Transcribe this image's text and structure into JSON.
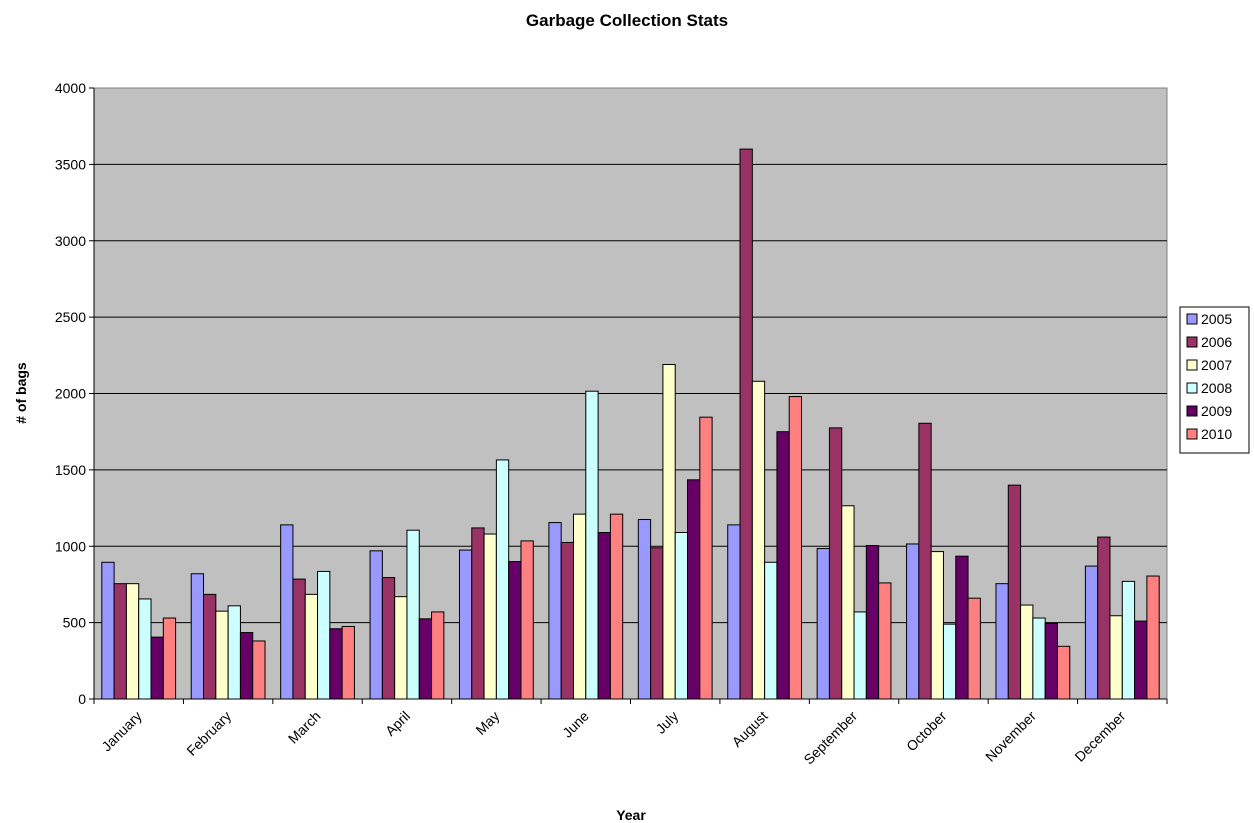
{
  "chart_data": {
    "type": "bar",
    "title": "Garbage Collection Stats",
    "xlabel": "Year",
    "ylabel": "# of bags",
    "ylim": [
      0,
      4000
    ],
    "yticks": [
      0,
      500,
      1000,
      1500,
      2000,
      2500,
      3000,
      3500,
      4000
    ],
    "grid": true,
    "legend_position": "right",
    "plot_background": "#c0c0c0",
    "categories": [
      "January",
      "February",
      "March",
      "April",
      "May",
      "June",
      "July",
      "August",
      "September",
      "October",
      "November",
      "December"
    ],
    "series": [
      {
        "name": "2005",
        "color": "#9999ff",
        "values": [
          895,
          820,
          1140,
          970,
          975,
          1155,
          1175,
          1140,
          985,
          1015,
          755,
          870
        ]
      },
      {
        "name": "2006",
        "color": "#993366",
        "values": [
          755,
          685,
          785,
          795,
          1120,
          1025,
          990,
          3600,
          1775,
          1805,
          1400,
          1060
        ]
      },
      {
        "name": "2007",
        "color": "#ffffcc",
        "values": [
          755,
          575,
          685,
          670,
          1080,
          1210,
          2190,
          2080,
          1265,
          965,
          615,
          545
        ]
      },
      {
        "name": "2008",
        "color": "#ccffff",
        "values": [
          655,
          610,
          835,
          1105,
          1565,
          2015,
          1090,
          895,
          570,
          490,
          530,
          770
        ]
      },
      {
        "name": "2009",
        "color": "#660066",
        "values": [
          405,
          435,
          460,
          525,
          900,
          1090,
          1435,
          1750,
          1005,
          935,
          495,
          510
        ]
      },
      {
        "name": "2010",
        "color": "#ff8080",
        "values": [
          530,
          380,
          475,
          570,
          1035,
          1210,
          1845,
          1980,
          760,
          660,
          345,
          805
        ]
      }
    ]
  }
}
